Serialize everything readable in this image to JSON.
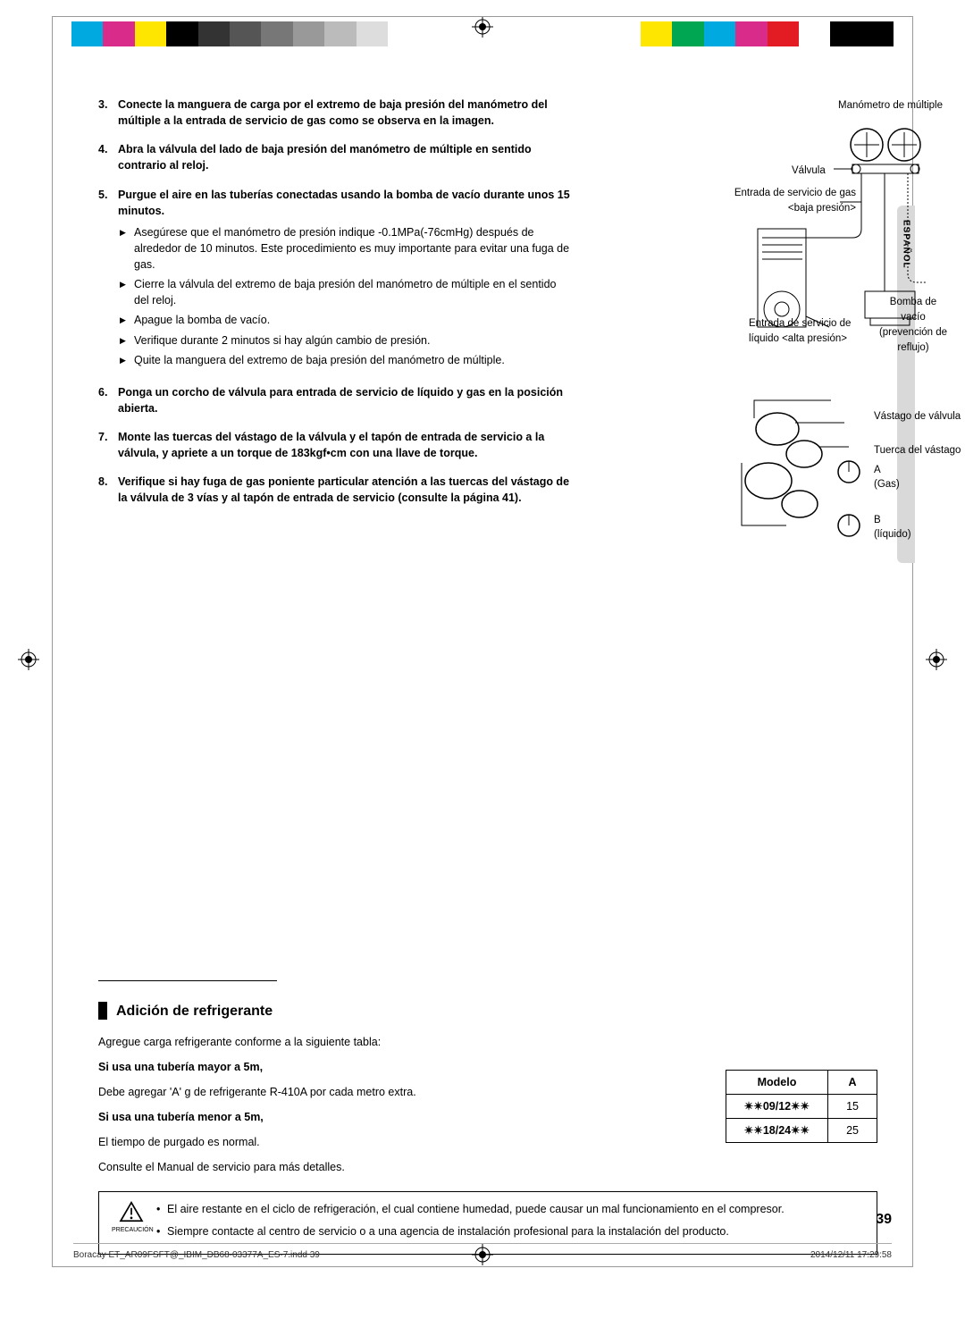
{
  "colorbar": [
    "#00a9e0",
    "#d92b8a",
    "#ffe600",
    "#000000",
    "#333333",
    "#555555",
    "#777777",
    "#999999",
    "#bbbbbb",
    "#dddddd",
    "#ffffff",
    "#ffffff",
    "#ffffff",
    "#ffffff",
    "#ffffff",
    "#ffffff",
    "#ffffff",
    "#ffffff",
    "#ffe600",
    "#00a651",
    "#00a9e0",
    "#d92b8a",
    "#e31b23",
    "#ffffff",
    "#000000",
    "#000000"
  ],
  "steps": [
    {
      "n": "3.",
      "text": "Conecte la manguera de carga por el extremo de baja presión del manómetro del múltiple a la entrada de servicio de gas como se observa en la imagen."
    },
    {
      "n": "4.",
      "text": "Abra la válvula del lado de baja presión del manómetro de múltiple en sentido contrario al reloj."
    },
    {
      "n": "5.",
      "text": "Purgue el aire en las tuberías conectadas usando la bomba de vacío durante unos 15 minutos.",
      "sub": [
        "Asegúrese que el manómetro de presión indique -0.1MPa(-76cmHg) después de alrededor de 10 minutos.\nEste procedimiento es muy importante para evitar una fuga de gas.",
        "Cierre la válvula del extremo de baja presión del manómetro de múltiple en el sentido del reloj.",
        "Apague la bomba de vacío.",
        "Verifique durante 2 minutos si hay algún cambio de presión.",
        "Quite la manguera del extremo de baja presión del manómetro de múltiple."
      ]
    },
    {
      "n": "6.",
      "text": "Ponga un corcho de válvula para entrada de servicio de líquido y gas en la posición abierta."
    },
    {
      "n": "7.",
      "text": "Monte las tuercas del vástago de la válvula y el tapón de entrada de servicio a la válvula, y apriete a un torque de 183kgf•cm con una llave de torque."
    },
    {
      "n": "8.",
      "text": "Verifique si hay fuga de gas poniente particular atención a las tuercas del vástago de la válvula de 3 vías y al tapón de entrada de servicio (consulte la página 41)."
    }
  ],
  "diagram1": {
    "manometro": "Manómetro de múltiple",
    "valvula": "Válvula",
    "entrada_gas": "Entrada de servicio de gas <baja presión>",
    "entrada_liquido": "Entrada de servicio de líquido <alta presión>",
    "bomba": "Bomba de vacío",
    "prevencion": "(prevención de reflujo)"
  },
  "diagram2": {
    "vastago": "Vástago de válvula",
    "tuerca": "Tuerca del vástago",
    "a": "A",
    "gas": "(Gas)",
    "b": "B",
    "liquido": "(líquido)"
  },
  "section_title": "Adición de refrigerante",
  "refrig": {
    "intro": "Agregue carga refrigerante conforme a la siguiente tabla:",
    "mayor_h": "Si usa una tubería mayor a 5m,",
    "mayor_t": "Debe agregar 'A' g de refrigerante R-410A por cada metro extra.",
    "menor_h": "Si usa una tubería menor a 5m,",
    "menor_t": "El tiempo de purgado es normal.",
    "consulte": "Consulte el Manual de servicio para más detalles."
  },
  "table": {
    "headers": [
      "Modelo",
      "A"
    ],
    "rows": [
      [
        "✴✴09/12✴✴",
        "15"
      ],
      [
        "✴✴18/24✴✴",
        "25"
      ]
    ]
  },
  "caution": {
    "label": "PRECAUCIÓN",
    "items": [
      "El aire restante en el ciclo de refrigeración, el cual contiene humedad, puede causar un mal funcionamiento en el compresor.",
      "Siempre contacte al centro de servicio o a una agencia de instalación profesional para la instalación del producto."
    ]
  },
  "lang_tab": "ESPAÑOL",
  "page_number": "39",
  "footer": {
    "file": "Boracay ET_AR09FSFT@_IBIM_DB68-03377A_ES-7.indd   39",
    "date": "2014/12/11   17:29:58"
  }
}
